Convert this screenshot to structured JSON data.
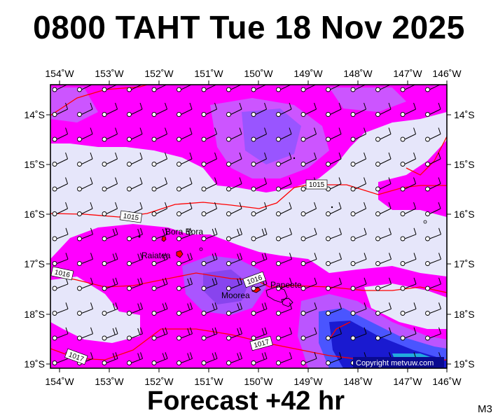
{
  "header": {
    "title": "0800 TAHT Tue 18 Nov 2025"
  },
  "footer": {
    "forecast": "Forecast +42 hr",
    "model": "M3"
  },
  "map": {
    "lon_labels": [
      "154˚W",
      "153˚W",
      "152˚W",
      "151˚W",
      "150˚W",
      "149˚W",
      "148˚W",
      "147˚W",
      "146˚W"
    ],
    "lat_labels": [
      "14˚S",
      "15˚S",
      "16˚S",
      "17˚S",
      "18˚S",
      "19˚S"
    ],
    "places": [
      {
        "name": "Bora Bora"
      },
      {
        "name": "Raiatea"
      },
      {
        "name": "Moorea"
      },
      {
        "name": "Papeete"
      }
    ],
    "isobars": [
      {
        "label": "1015"
      },
      {
        "label": "1015"
      },
      {
        "label": "1016"
      },
      {
        "label": "1016"
      },
      {
        "label": "1017"
      },
      {
        "label": "1017"
      }
    ],
    "copyright": "Copyright metvuw.com",
    "colors": {
      "low": "#e6e6fa",
      "magenta": "#ff00ff",
      "violet": "#cc44ff",
      "purple": "#8a4dff",
      "blue": "#3344ff",
      "deepblue": "#1010c0",
      "isobar": "#ff0000"
    }
  }
}
